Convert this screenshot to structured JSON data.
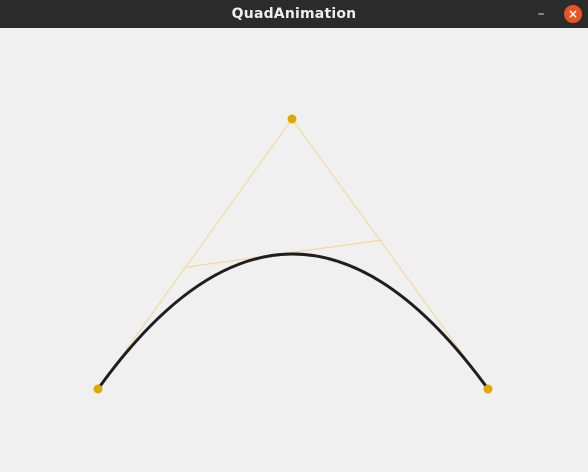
{
  "window": {
    "title": "QuadAnimation",
    "minimize_symbol": "–",
    "close_symbol": "×"
  },
  "colors": {
    "titlebar": "#2b2b2b",
    "canvas_bg": "#f0f0f0",
    "control_point": "#e0a800",
    "construction_line": "#f6d79a",
    "curve": "#1e1e1e",
    "close_button": "#e95420"
  },
  "icons": {
    "minimize": "minimize-icon",
    "close": "close-icon"
  }
}
